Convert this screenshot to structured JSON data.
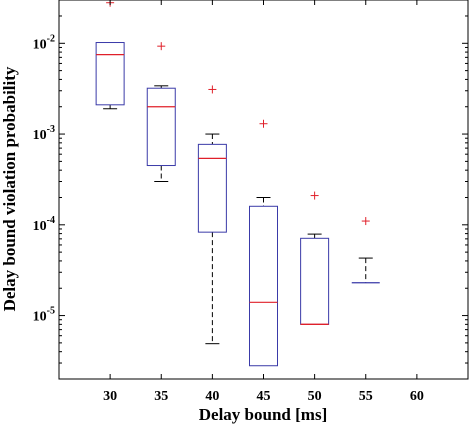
{
  "chart_data": {
    "type": "box",
    "xlabel": "Delay bound [ms]",
    "ylabel": "Delay bound violation probability",
    "yscale": "log",
    "ylim": [
      2e-06,
      0.03
    ],
    "xlim": [
      25,
      65
    ],
    "x_ticks": [
      30,
      35,
      40,
      45,
      50,
      55,
      60
    ],
    "x_tick_labels": [
      "30",
      "35",
      "40",
      "45",
      "50",
      "55",
      "60"
    ],
    "y_ticks": [
      1e-05,
      0.0001,
      0.001,
      0.01
    ],
    "y_tick_labels": [
      {
        "base": "10",
        "exp": "-5"
      },
      {
        "base": "10",
        "exp": "-4"
      },
      {
        "base": "10",
        "exp": "-3"
      },
      {
        "base": "10",
        "exp": "-2"
      }
    ],
    "grid": false,
    "colors": {
      "box": "#3a3aa8",
      "median": "#e0202a",
      "whisker": "#000000",
      "outlier": "#e0202a"
    },
    "boxes": [
      {
        "x": 30,
        "whisker_low": 0.0019,
        "q1": 0.0021,
        "median": 0.0075,
        "q3": 0.0102,
        "whisker_high": 0.0102,
        "outliers": [
          0.028
        ]
      },
      {
        "x": 35,
        "whisker_low": 0.0003,
        "q1": 0.00045,
        "median": 0.002,
        "q3": 0.0032,
        "whisker_high": 0.0034,
        "outliers": [
          0.0093
        ]
      },
      {
        "x": 40,
        "whisker_low": 4.9e-06,
        "q1": 8.3e-05,
        "median": 0.00054,
        "q3": 0.00077,
        "whisker_high": 0.001,
        "outliers": [
          0.0031
        ]
      },
      {
        "x": 45,
        "whisker_low": 2.8e-06,
        "q1": 2.8e-06,
        "median": 1.4e-05,
        "q3": 0.00016,
        "whisker_high": 0.0002,
        "outliers": [
          0.0013
        ]
      },
      {
        "x": 50,
        "whisker_low": 8e-06,
        "q1": 8e-06,
        "median": 8e-06,
        "q3": 7.1e-05,
        "whisker_high": 7.9e-05,
        "outliers": [
          0.00021
        ]
      },
      {
        "x": 55,
        "whisker_low": 2.3e-05,
        "q1": 2.3e-05,
        "median": 2.3e-05,
        "q3": 2.3e-05,
        "whisker_high": 4.3e-05,
        "outliers": [
          0.00011
        ]
      }
    ]
  }
}
